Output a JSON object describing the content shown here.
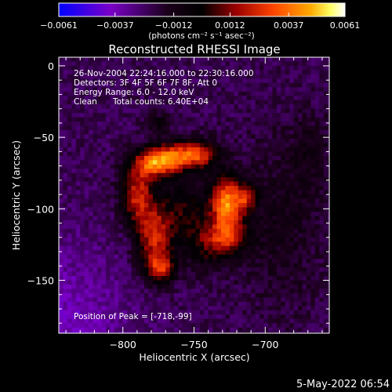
{
  "chart_data": {
    "type": "heatmap",
    "title": "Reconstructed RHESSI Image",
    "xlabel": "Heliocentric X (arcsec)",
    "ylabel": "Heliocentric Y (arcsec)",
    "xlim": [
      -845,
      -655
    ],
    "ylim": [
      -187,
      6
    ],
    "x_ticks": [
      -800,
      -750,
      -700
    ],
    "x_tick_labels": [
      "−800",
      "−750",
      "−700"
    ],
    "y_ticks": [
      0,
      -50,
      -100,
      -150
    ],
    "y_tick_labels": [
      "0",
      "−50",
      "−100",
      "−150"
    ],
    "colorbar": {
      "ticks": [
        -0.0061,
        -0.0037,
        -0.0012,
        0.0012,
        0.0037,
        0.0061
      ],
      "tick_labels": [
        "−0.0061",
        "−0.0037",
        "−0.0012",
        "0.0012",
        "0.0037",
        "0.0061"
      ],
      "unit_label": "(photons cm⁻² s⁻¹ asec⁻²)",
      "range": [
        -0.0061,
        0.0061
      ],
      "colors": [
        "#0000ff",
        "#7a00c8",
        "#1a001a",
        "#000000",
        "#9a0000",
        "#ff4400",
        "#ffaa00",
        "#ffff66",
        "#ffffff"
      ]
    },
    "annotations": [
      "26-Nov-2004 22:24:16.000 to 22:30:16.000",
      "Detectors: 3F 4F 5F 6F 7F 8F, Att 0",
      "Energy Range: 6.0 - 12.0 keV",
      "Clean",
      "Total counts: 6.40E+04"
    ],
    "peak_label": "Position of Peak = [-718,-99]",
    "peak": {
      "x": -718,
      "y": -99,
      "value": 0.0061
    },
    "source_blobs": [
      {
        "x": -727,
        "y": -96,
        "sx": 8,
        "sy": 13,
        "value": 0.0061
      },
      {
        "x": -713,
        "y": -92,
        "sx": 5,
        "sy": 7,
        "value": 0.003
      },
      {
        "x": -778,
        "y": -68,
        "sx": 10,
        "sy": 7,
        "value": 0.0052
      },
      {
        "x": -762,
        "y": -63,
        "sx": 11,
        "sy": 7,
        "value": 0.0044
      },
      {
        "x": -745,
        "y": -62,
        "sx": 9,
        "sy": 7,
        "value": 0.0036
      },
      {
        "x": -790,
        "y": -90,
        "sx": 8,
        "sy": 14,
        "value": 0.0042
      },
      {
        "x": -778,
        "y": -120,
        "sx": 9,
        "sy": 16,
        "value": 0.0042
      },
      {
        "x": -773,
        "y": -142,
        "sx": 7,
        "sy": 7,
        "value": 0.0038
      },
      {
        "x": -758,
        "y": -100,
        "sx": 12,
        "sy": 16,
        "value": 0.0022
      },
      {
        "x": -740,
        "y": -125,
        "sx": 11,
        "sy": 12,
        "value": 0.0024
      },
      {
        "x": -725,
        "y": -120,
        "sx": 10,
        "sy": 8,
        "value": 0.003
      },
      {
        "x": -775,
        "y": -40,
        "sx": 6,
        "sy": 5,
        "value": 0.0015
      },
      {
        "x": -690,
        "y": -110,
        "sx": 20,
        "sy": 40,
        "value": 0.0011
      },
      {
        "x": -668,
        "y": -60,
        "sx": 10,
        "sy": 20,
        "value": 0.0009
      }
    ]
  },
  "footer": {
    "date_stamp": "5-May-2022 06:54"
  }
}
